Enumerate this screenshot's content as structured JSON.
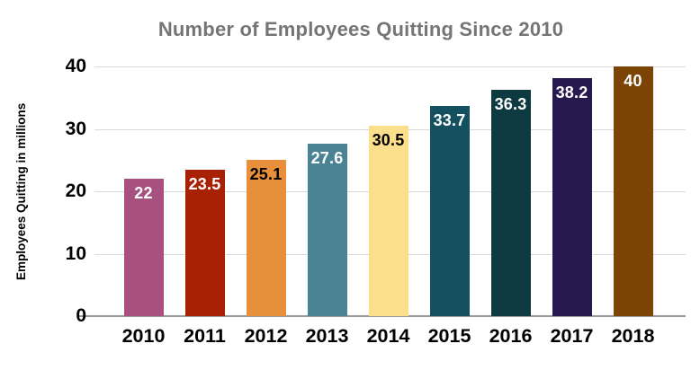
{
  "chart_data": {
    "type": "bar",
    "title": "Number of Employees Quitting Since 2010",
    "xlabel": "",
    "ylabel": "Employees Quitting in millions",
    "categories": [
      "2010",
      "2011",
      "2012",
      "2013",
      "2014",
      "2015",
      "2016",
      "2017",
      "2018"
    ],
    "values": [
      22,
      23.5,
      25.1,
      27.6,
      30.5,
      33.7,
      36.3,
      38.2,
      40
    ],
    "value_labels": [
      "22",
      "23.5",
      "25.1",
      "27.6",
      "30.5",
      "33.7",
      "36.3",
      "38.2",
      "40"
    ],
    "bar_colors": [
      "#a8517f",
      "#a82104",
      "#e88f3c",
      "#4a8394",
      "#fcdf8b",
      "#155061",
      "#0d3a41",
      "#27194f",
      "#7b4405"
    ],
    "value_label_colors": [
      "#ffffff",
      "#ffffff",
      "#000000",
      "#ffffff",
      "#000000",
      "#ffffff",
      "#ffffff",
      "#ffffff",
      "#ffffff"
    ],
    "yticks": [
      0,
      10,
      20,
      30,
      40
    ],
    "ylim": [
      0,
      40
    ],
    "grid": true,
    "legend_position": "none",
    "colors": {
      "title": "#757575",
      "axis_text": "#000000",
      "gridline": "#dadada",
      "baseline": "#9a9a9a",
      "background": "#ffffff"
    }
  }
}
